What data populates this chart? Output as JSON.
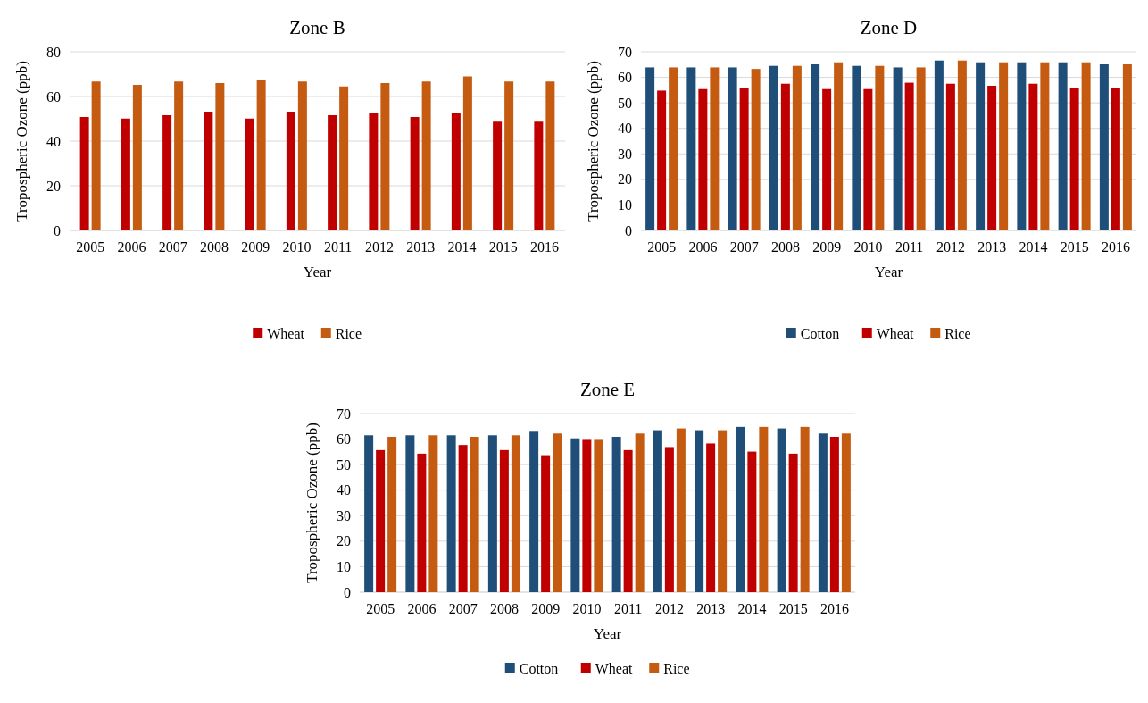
{
  "chart_data": [
    {
      "type": "bar",
      "title": "Zone B",
      "xlabel": "Year",
      "ylabel": "Tropospheric Ozone  (ppb)",
      "categories": [
        "2005",
        "2006",
        "2007",
        "2008",
        "2009",
        "2010",
        "2011",
        "2012",
        "2013",
        "2014",
        "2015",
        "2016"
      ],
      "series": [
        {
          "name": "Wheat",
          "color": "#c00000",
          "values": [
            50.8,
            50.1,
            51.6,
            53.2,
            50.1,
            53.2,
            51.6,
            52.4,
            50.8,
            52.4,
            48.7,
            48.7
          ]
        },
        {
          "name": "Rice",
          "color": "#c55a11",
          "values": [
            66.7,
            65.2,
            66.7,
            66.0,
            67.4,
            66.7,
            64.5,
            66.0,
            66.7,
            69.0,
            66.7,
            66.7
          ]
        }
      ],
      "ylim": [
        0,
        80
      ],
      "yticks": [
        0,
        20,
        40,
        60,
        80
      ],
      "grid": "y",
      "legend": "bottom"
    },
    {
      "type": "bar",
      "title": "Zone D",
      "xlabel": "Year",
      "ylabel": "Tropospheric Ozone  (ppb)",
      "categories": [
        "2005",
        "2006",
        "2007",
        "2008",
        "2009",
        "2010",
        "2011",
        "2012",
        "2013",
        "2014",
        "2015",
        "2016"
      ],
      "series": [
        {
          "name": "Cotton",
          "color": "#1f4e79",
          "values": [
            63.9,
            63.9,
            63.9,
            64.5,
            65.1,
            64.5,
            63.9,
            66.6,
            65.9,
            65.9,
            65.9,
            65.1
          ]
        },
        {
          "name": "Wheat",
          "color": "#c00000",
          "values": [
            54.8,
            55.4,
            56.0,
            57.5,
            55.4,
            55.4,
            57.9,
            57.5,
            56.7,
            57.5,
            56.0,
            56.0
          ]
        },
        {
          "name": "Rice",
          "color": "#c55a11",
          "values": [
            63.9,
            63.9,
            63.3,
            64.5,
            65.9,
            64.5,
            63.9,
            66.6,
            65.9,
            65.9,
            65.9,
            65.1
          ]
        }
      ],
      "ylim": [
        0,
        70
      ],
      "yticks": [
        0,
        10,
        20,
        30,
        40,
        50,
        60,
        70
      ],
      "grid": "y",
      "legend": "bottom"
    },
    {
      "type": "bar",
      "title": "Zone E",
      "xlabel": "Year",
      "ylabel": "Tropospheric Ozone  (ppb)",
      "categories": [
        "2005",
        "2006",
        "2007",
        "2008",
        "2009",
        "2010",
        "2011",
        "2012",
        "2013",
        "2014",
        "2015",
        "2016"
      ],
      "series": [
        {
          "name": "Cotton",
          "color": "#1f4e79",
          "values": [
            61.5,
            61.5,
            61.5,
            61.5,
            62.9,
            60.3,
            60.9,
            63.5,
            63.5,
            64.8,
            64.2,
            62.2
          ]
        },
        {
          "name": "Wheat",
          "color": "#c00000",
          "values": [
            55.7,
            54.3,
            57.7,
            55.7,
            53.7,
            59.7,
            55.7,
            56.9,
            58.3,
            55.1,
            54.3,
            60.9
          ]
        },
        {
          "name": "Rice",
          "color": "#c55a11",
          "values": [
            60.9,
            61.5,
            60.9,
            61.5,
            62.2,
            59.7,
            62.2,
            64.2,
            63.5,
            64.8,
            64.8,
            62.2
          ]
        }
      ],
      "ylim": [
        0,
        70
      ],
      "yticks": [
        0,
        10,
        20,
        30,
        40,
        50,
        60,
        70
      ],
      "grid": "y",
      "legend": "bottom"
    }
  ]
}
